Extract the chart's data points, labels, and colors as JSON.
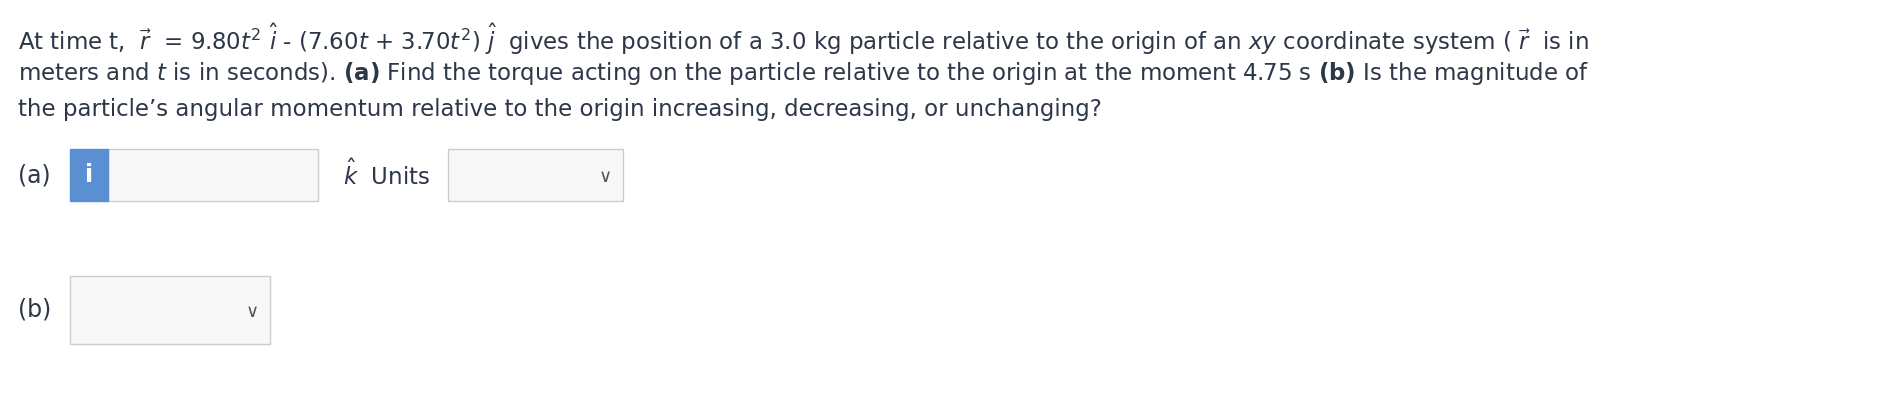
{
  "background_color": "#ffffff",
  "text_color": "#2d3748",
  "blue_box_color": "#5b8fd4",
  "input_box_bg": "#f8f8f8",
  "input_box_border": "#cccccc",
  "dropdown_bg": "#f8f8f8",
  "dropdown_border": "#cccccc",
  "font_size_body": 16.5,
  "font_size_label": 17,
  "line1": "At time t,  $\\vec{r}$  = 9.80$t^2$ $\\hat{i}$ - (7.60$t$ + 3.70$t^2$) $\\hat{j}$  gives the position of a 3.0 kg particle relative to the origin of an $xy$ coordinate system ( $\\vec{r}$  is in",
  "line2": "meters and $t$ is in seconds). $\\mathbf{(a)}$ Find the torque acting on the particle relative to the origin at the moment 4.75 s $\\mathbf{(b)}$ Is the magnitude of",
  "line3": "the particle’s angular momentum relative to the origin increasing, decreasing, or unchanging?",
  "label_a": "(a)",
  "label_b": "(b)",
  "figw": 19.01,
  "figh": 4.08,
  "dpi": 100
}
